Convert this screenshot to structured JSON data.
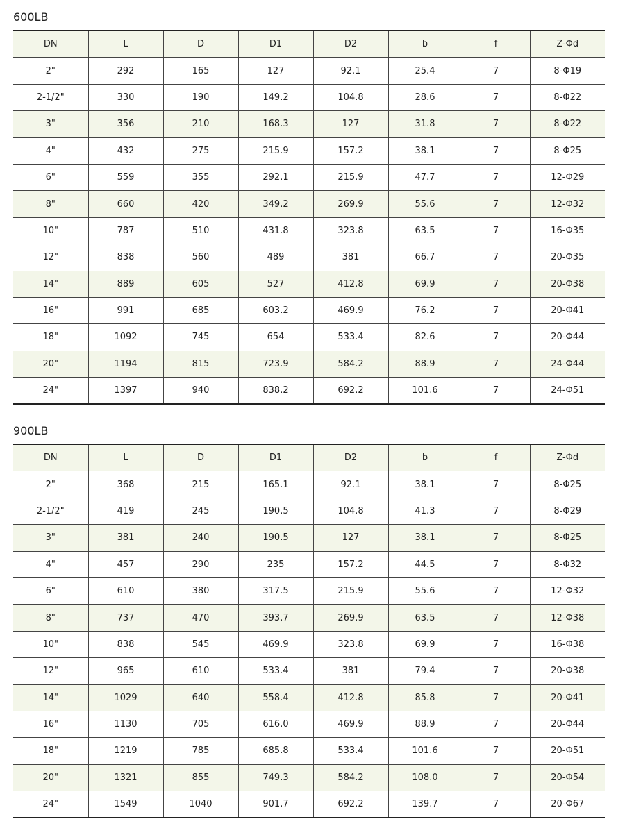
{
  "columns": [
    "DN",
    "L",
    "D",
    "D1",
    "D2",
    "b",
    "f",
    "Z-Φd"
  ],
  "tables": [
    {
      "title": "600LB",
      "rows": [
        [
          "2\"",
          "292",
          "165",
          "127",
          "92.1",
          "25.4",
          "7",
          "8-Φ19"
        ],
        [
          "2-1/2\"",
          "330",
          "190",
          "149.2",
          "104.8",
          "28.6",
          "7",
          "8-Φ22"
        ],
        [
          "3\"",
          "356",
          "210",
          "168.3",
          "127",
          "31.8",
          "7",
          "8-Φ22"
        ],
        [
          "4\"",
          "432",
          "275",
          "215.9",
          "157.2",
          "38.1",
          "7",
          "8-Φ25"
        ],
        [
          "6\"",
          "559",
          "355",
          "292.1",
          "215.9",
          "47.7",
          "7",
          "12-Φ29"
        ],
        [
          "8\"",
          "660",
          "420",
          "349.2",
          "269.9",
          "55.6",
          "7",
          "12-Φ32"
        ],
        [
          "10\"",
          "787",
          "510",
          "431.8",
          "323.8",
          "63.5",
          "7",
          "16-Φ35"
        ],
        [
          "12\"",
          "838",
          "560",
          "489",
          "381",
          "66.7",
          "7",
          "20-Φ35"
        ],
        [
          "14\"",
          "889",
          "605",
          "527",
          "412.8",
          "69.9",
          "7",
          "20-Φ38"
        ],
        [
          "16\"",
          "991",
          "685",
          "603.2",
          "469.9",
          "76.2",
          "7",
          "20-Φ41"
        ],
        [
          "18\"",
          "1092",
          "745",
          "654",
          "533.4",
          "82.6",
          "7",
          "20-Φ44"
        ],
        [
          "20\"",
          "1194",
          "815",
          "723.9",
          "584.2",
          "88.9",
          "7",
          "24-Φ44"
        ],
        [
          "24\"",
          "1397",
          "940",
          "838.2",
          "692.2",
          "101.6",
          "7",
          "24-Φ51"
        ]
      ]
    },
    {
      "title": "900LB",
      "rows": [
        [
          "2\"",
          "368",
          "215",
          "165.1",
          "92.1",
          "38.1",
          "7",
          "8-Φ25"
        ],
        [
          "2-1/2\"",
          "419",
          "245",
          "190.5",
          "104.8",
          "41.3",
          "7",
          "8-Φ29"
        ],
        [
          "3\"",
          "381",
          "240",
          "190.5",
          "127",
          "38.1",
          "7",
          "8-Φ25"
        ],
        [
          "4\"",
          "457",
          "290",
          "235",
          "157.2",
          "44.5",
          "7",
          "8-Φ32"
        ],
        [
          "6\"",
          "610",
          "380",
          "317.5",
          "215.9",
          "55.6",
          "7",
          "12-Φ32"
        ],
        [
          "8\"",
          "737",
          "470",
          "393.7",
          "269.9",
          "63.5",
          "7",
          "12-Φ38"
        ],
        [
          "10\"",
          "838",
          "545",
          "469.9",
          "323.8",
          "69.9",
          "7",
          "16-Φ38"
        ],
        [
          "12\"",
          "965",
          "610",
          "533.4",
          "381",
          "79.4",
          "7",
          "20-Φ38"
        ],
        [
          "14\"",
          "1029",
          "640",
          "558.4",
          "412.8",
          "85.8",
          "7",
          "20-Φ41"
        ],
        [
          "16\"",
          "1130",
          "705",
          "616.0",
          "469.9",
          "88.9",
          "7",
          "20-Φ44"
        ],
        [
          "18\"",
          "1219",
          "785",
          "685.8",
          "533.4",
          "101.6",
          "7",
          "20-Φ51"
        ],
        [
          "20\"",
          "1321",
          "855",
          "749.3",
          "584.2",
          "108.0",
          "7",
          "20-Φ54"
        ],
        [
          "24\"",
          "1549",
          "1040",
          "901.7",
          "692.2",
          "139.7",
          "7",
          "20-Φ67"
        ]
      ]
    }
  ],
  "colors": {
    "highlight_row": "#f3f6e9",
    "rule": "#222222"
  }
}
